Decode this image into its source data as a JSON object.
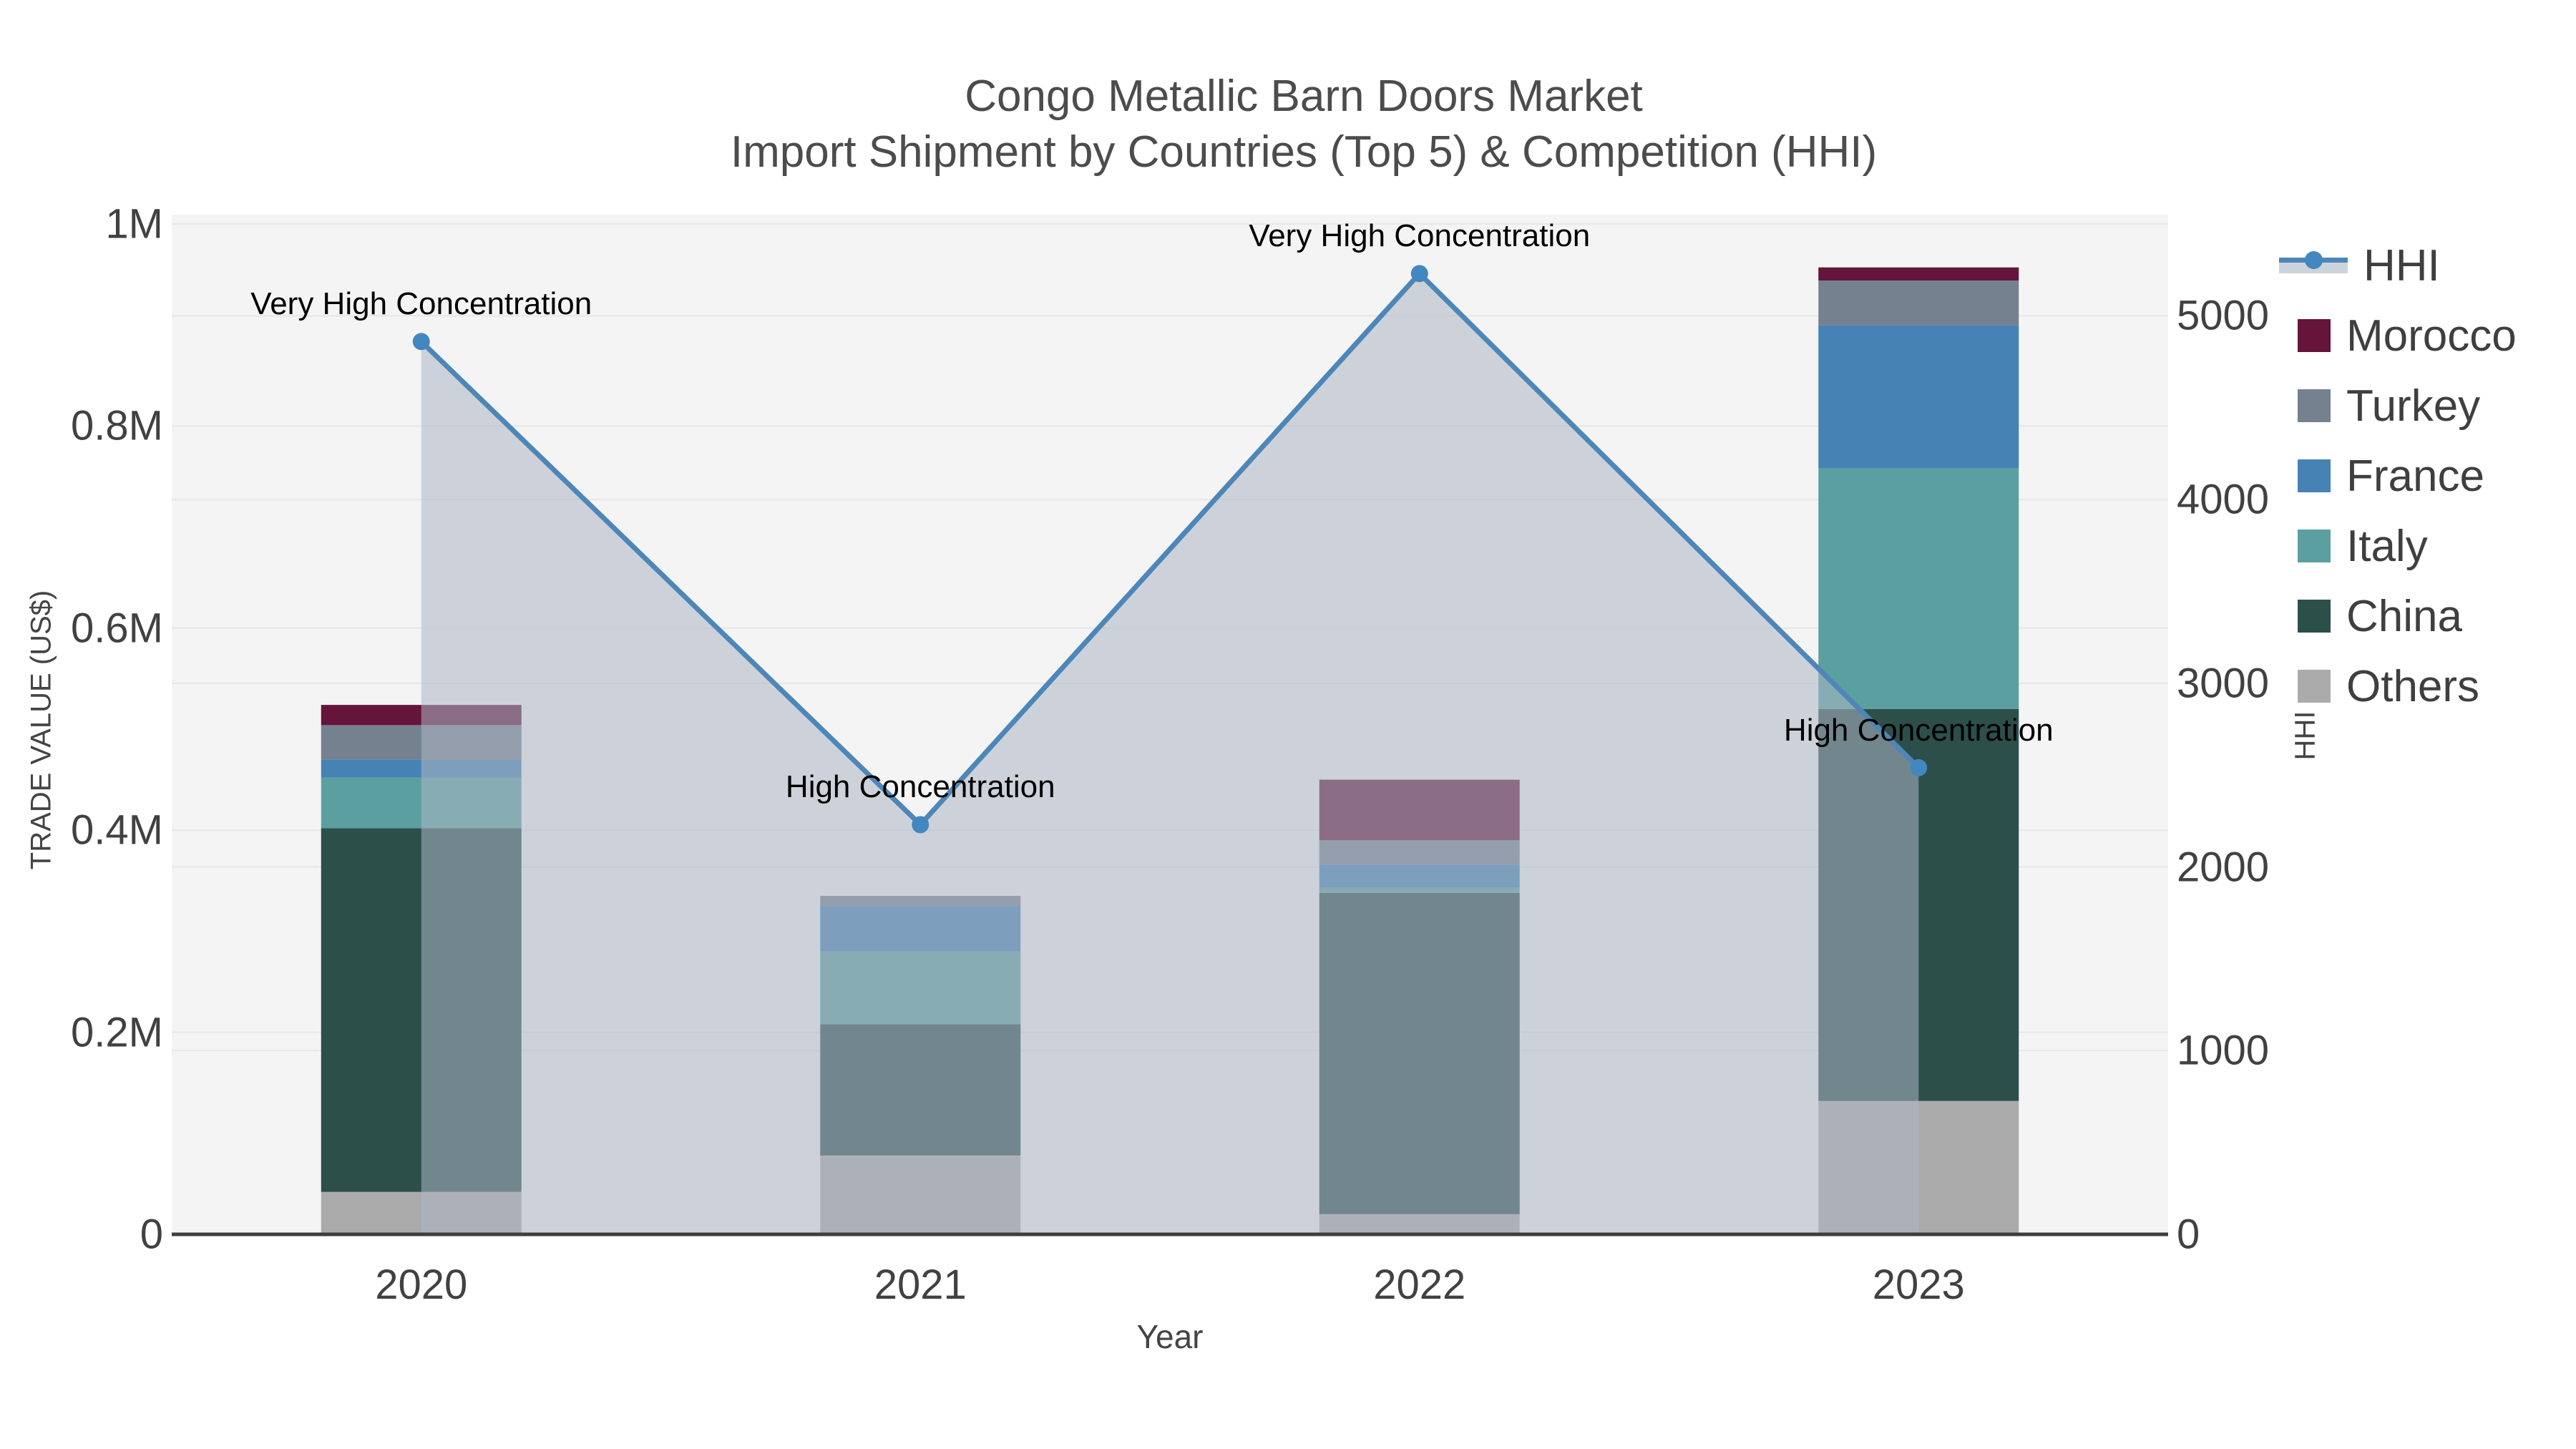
{
  "title": {
    "line1": "Congo Metallic Barn Doors Market",
    "line2": "Import Shipment by Countries (Top 5) & Competition (HHI)"
  },
  "colors": {
    "Morocco": "#65143a",
    "Turkey": "#75818f",
    "France": "#4682b4",
    "Italy": "#5c9fa1",
    "China": "#2c4f4a",
    "Others": "#ababab",
    "HHI": "#4e86b8",
    "hhi_marker": "#4387c0",
    "area_fill": "rgba(173,182,197,0.55)",
    "plot_bg": "#f4f4f4",
    "grid": "#e7e7e7",
    "axis_line": "#3d3d3d",
    "tick_text": "#414141",
    "title_text": "#4c4c4c"
  },
  "legend": {
    "items": [
      {
        "name": "HHI",
        "type": "line"
      },
      {
        "name": "Morocco",
        "type": "box"
      },
      {
        "name": "Turkey",
        "type": "box"
      },
      {
        "name": "France",
        "type": "box"
      },
      {
        "name": "Italy",
        "type": "box"
      },
      {
        "name": "China",
        "type": "box"
      },
      {
        "name": "Others",
        "type": "box"
      }
    ]
  },
  "chart_data": {
    "type": "bar+line",
    "title_line1": "Congo Metallic Barn Doors Market",
    "title_line2": "Import Shipment by Countries (Top 5) & Competition (HHI)",
    "categories": [
      "2020",
      "2021",
      "2022",
      "2023"
    ],
    "stack_order": [
      "Others",
      "China",
      "Italy",
      "France",
      "Turkey",
      "Morocco"
    ],
    "series": [
      {
        "name": "Morocco",
        "values": [
          20000,
          0,
          60000,
          13000
        ]
      },
      {
        "name": "Turkey",
        "values": [
          34000,
          10000,
          24000,
          44000
        ]
      },
      {
        "name": "France",
        "values": [
          18000,
          45000,
          23000,
          142000
        ]
      },
      {
        "name": "Italy",
        "values": [
          50000,
          72000,
          5000,
          238000
        ]
      },
      {
        "name": "China",
        "values": [
          360000,
          130000,
          318000,
          388000
        ]
      },
      {
        "name": "Others",
        "values": [
          42000,
          78000,
          20000,
          132000
        ]
      }
    ],
    "line_series": {
      "name": "HHI",
      "values": [
        4860,
        2230,
        5230,
        2540
      ]
    },
    "annotations": [
      "Very High Concentration",
      "High Concentration",
      "Very High Concentration",
      "High Concentration"
    ],
    "xlabel": "Year",
    "ylabel_left": "TRADE VALUE (US$)",
    "ylabel_right": "HHI",
    "y_left": {
      "max": 1000000,
      "ticks": [
        {
          "v": 0,
          "label": "0"
        },
        {
          "v": 200000,
          "label": "0.2M"
        },
        {
          "v": 400000,
          "label": "0.4M"
        },
        {
          "v": 600000,
          "label": "0.6M"
        },
        {
          "v": 800000,
          "label": "0.8M"
        },
        {
          "v": 1000000,
          "label": "1M"
        }
      ]
    },
    "y_right": {
      "max": 5500,
      "ticks": [
        {
          "v": 0,
          "label": "0"
        },
        {
          "v": 1000,
          "label": "1000"
        },
        {
          "v": 2000,
          "label": "2000"
        },
        {
          "v": 3000,
          "label": "3000"
        },
        {
          "v": 4000,
          "label": "4000"
        },
        {
          "v": 5000,
          "label": "5000"
        }
      ]
    },
    "grid": true,
    "legend_position": "right"
  }
}
